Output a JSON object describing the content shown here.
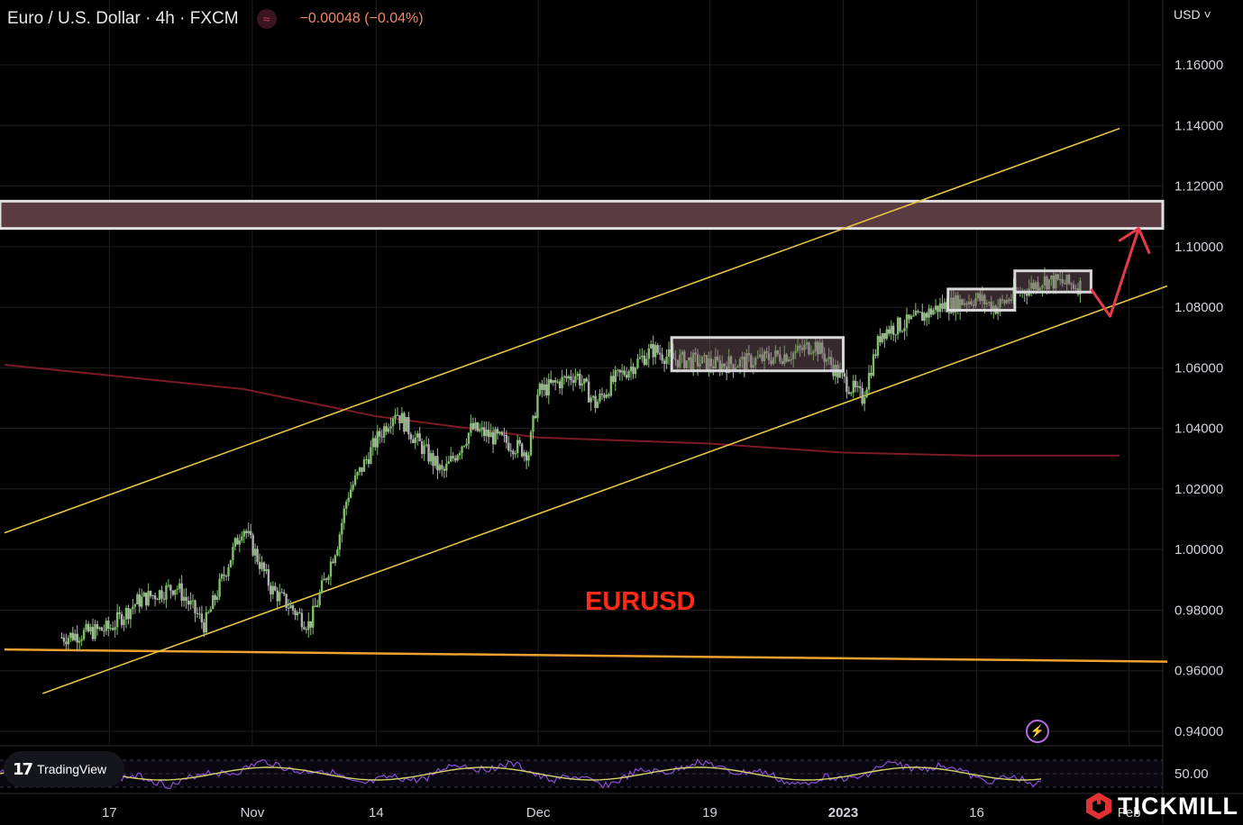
{
  "header": {
    "symbol": "Euro / U.S. Dollar · 4h · FXCM",
    "indicator_icon": "≈",
    "change": "−0.00048 (−0.04%)"
  },
  "currency_menu": "USD",
  "currency_chevron": "˅",
  "annotation": "EURUSD",
  "tradingview_badge": {
    "logo": "17",
    "label": "TradingView"
  },
  "brand": {
    "label": "TICKMILL"
  },
  "alert_icon": "⚡",
  "colors": {
    "background": "#000000",
    "channel": "#e4c441",
    "moving_average": "#7a1b25",
    "support_line": "#f0a030",
    "resistance_zone": "#5a3b42",
    "annotation": "#ff2a1a",
    "projection_arrow": "#e8394a",
    "candle_up": "#7fbf6a",
    "candle_down": "#b0b0b0",
    "rsi": "#8a4fd6",
    "rsi_ma": "#d6d26a",
    "brand": "#e03232"
  },
  "chart_data": {
    "type": "line",
    "title": "Euro / U.S. Dollar · 4h · FXCM",
    "y_axis": {
      "ticks": [
        "1.16000",
        "1.14000",
        "1.12000",
        "1.10000",
        "1.08000",
        "1.06000",
        "1.04000",
        "1.02000",
        "1.00000",
        "0.98000",
        "0.96000",
        "0.94000"
      ],
      "range": [
        0.935,
        1.17
      ]
    },
    "x_axis": {
      "ticks": [
        "17",
        "Nov",
        "14",
        "Dec",
        "19",
        "2023",
        "16",
        "Feb"
      ]
    },
    "series": [
      {
        "kind": "price",
        "x": [
          "2022-10-12",
          "2022-10-17",
          "2022-10-20",
          "2022-10-24",
          "2022-10-27",
          "2022-10-31",
          "2022-11-03",
          "2022-11-07",
          "2022-11-10",
          "2022-11-11",
          "2022-11-14",
          "2022-11-16",
          "2022-11-18",
          "2022-11-21",
          "2022-11-24",
          "2022-11-28",
          "2022-11-30",
          "2022-12-01",
          "2022-12-05",
          "2022-12-07",
          "2022-12-09",
          "2022-12-13",
          "2022-12-15",
          "2022-12-20",
          "2022-12-23",
          "2022-12-28",
          "2022-12-30",
          "2023-01-02",
          "2023-01-04",
          "2023-01-06",
          "2023-01-09",
          "2023-01-12",
          "2023-01-16",
          "2023-01-18",
          "2023-01-20",
          "2023-01-23",
          "2023-01-25",
          "2023-01-27"
        ],
        "values": [
          0.971,
          0.974,
          0.983,
          0.988,
          0.975,
          1.008,
          0.987,
          0.975,
          1.003,
          1.018,
          1.036,
          1.046,
          1.037,
          1.025,
          1.04,
          1.035,
          1.032,
          1.052,
          1.058,
          1.048,
          1.056,
          1.066,
          1.063,
          1.061,
          1.062,
          1.065,
          1.068,
          1.056,
          1.05,
          1.072,
          1.075,
          1.08,
          1.083,
          1.08,
          1.084,
          1.089,
          1.088,
          1.087
        ]
      },
      {
        "kind": "moving_average",
        "x": [
          "2022-10-06",
          "2022-10-31",
          "2022-11-14",
          "2022-12-01",
          "2022-12-19",
          "2023-01-02",
          "2023-01-16",
          "2023-01-31"
        ],
        "values": [
          1.061,
          1.053,
          1.044,
          1.037,
          1.035,
          1.032,
          1.031,
          1.031
        ]
      }
    ],
    "overlays": {
      "channel_upper": {
        "from": [
          "2022-10-06",
          1.0055
        ],
        "to": [
          "2023-01-31",
          1.139
        ]
      },
      "channel_lower": {
        "from": [
          "2022-10-10",
          0.9525
        ],
        "to": [
          "2023-02-05",
          1.087
        ]
      },
      "support_line": {
        "from": [
          "2022-10-06",
          0.967
        ],
        "to": [
          "2023-02-05",
          0.963
        ]
      },
      "resistance_zone": [
        1.106,
        1.115
      ],
      "consolidation_boxes": [
        {
          "x": [
            "2022-12-15",
            "2023-01-02"
          ],
          "y": [
            1.059,
            1.07
          ]
        },
        {
          "x": [
            "2023-01-13",
            "2023-01-20"
          ],
          "y": [
            1.079,
            1.086
          ]
        },
        {
          "x": [
            "2023-01-20",
            "2023-01-28"
          ],
          "y": [
            1.085,
            1.092
          ]
        }
      ],
      "projection": {
        "x": [
          "2023-01-28",
          "2023-01-30",
          "2023-02-02"
        ],
        "values": [
          1.086,
          1.077,
          1.106
        ]
      }
    },
    "rsi": {
      "level_label": "50.00"
    },
    "grid": true,
    "legend": "none"
  }
}
